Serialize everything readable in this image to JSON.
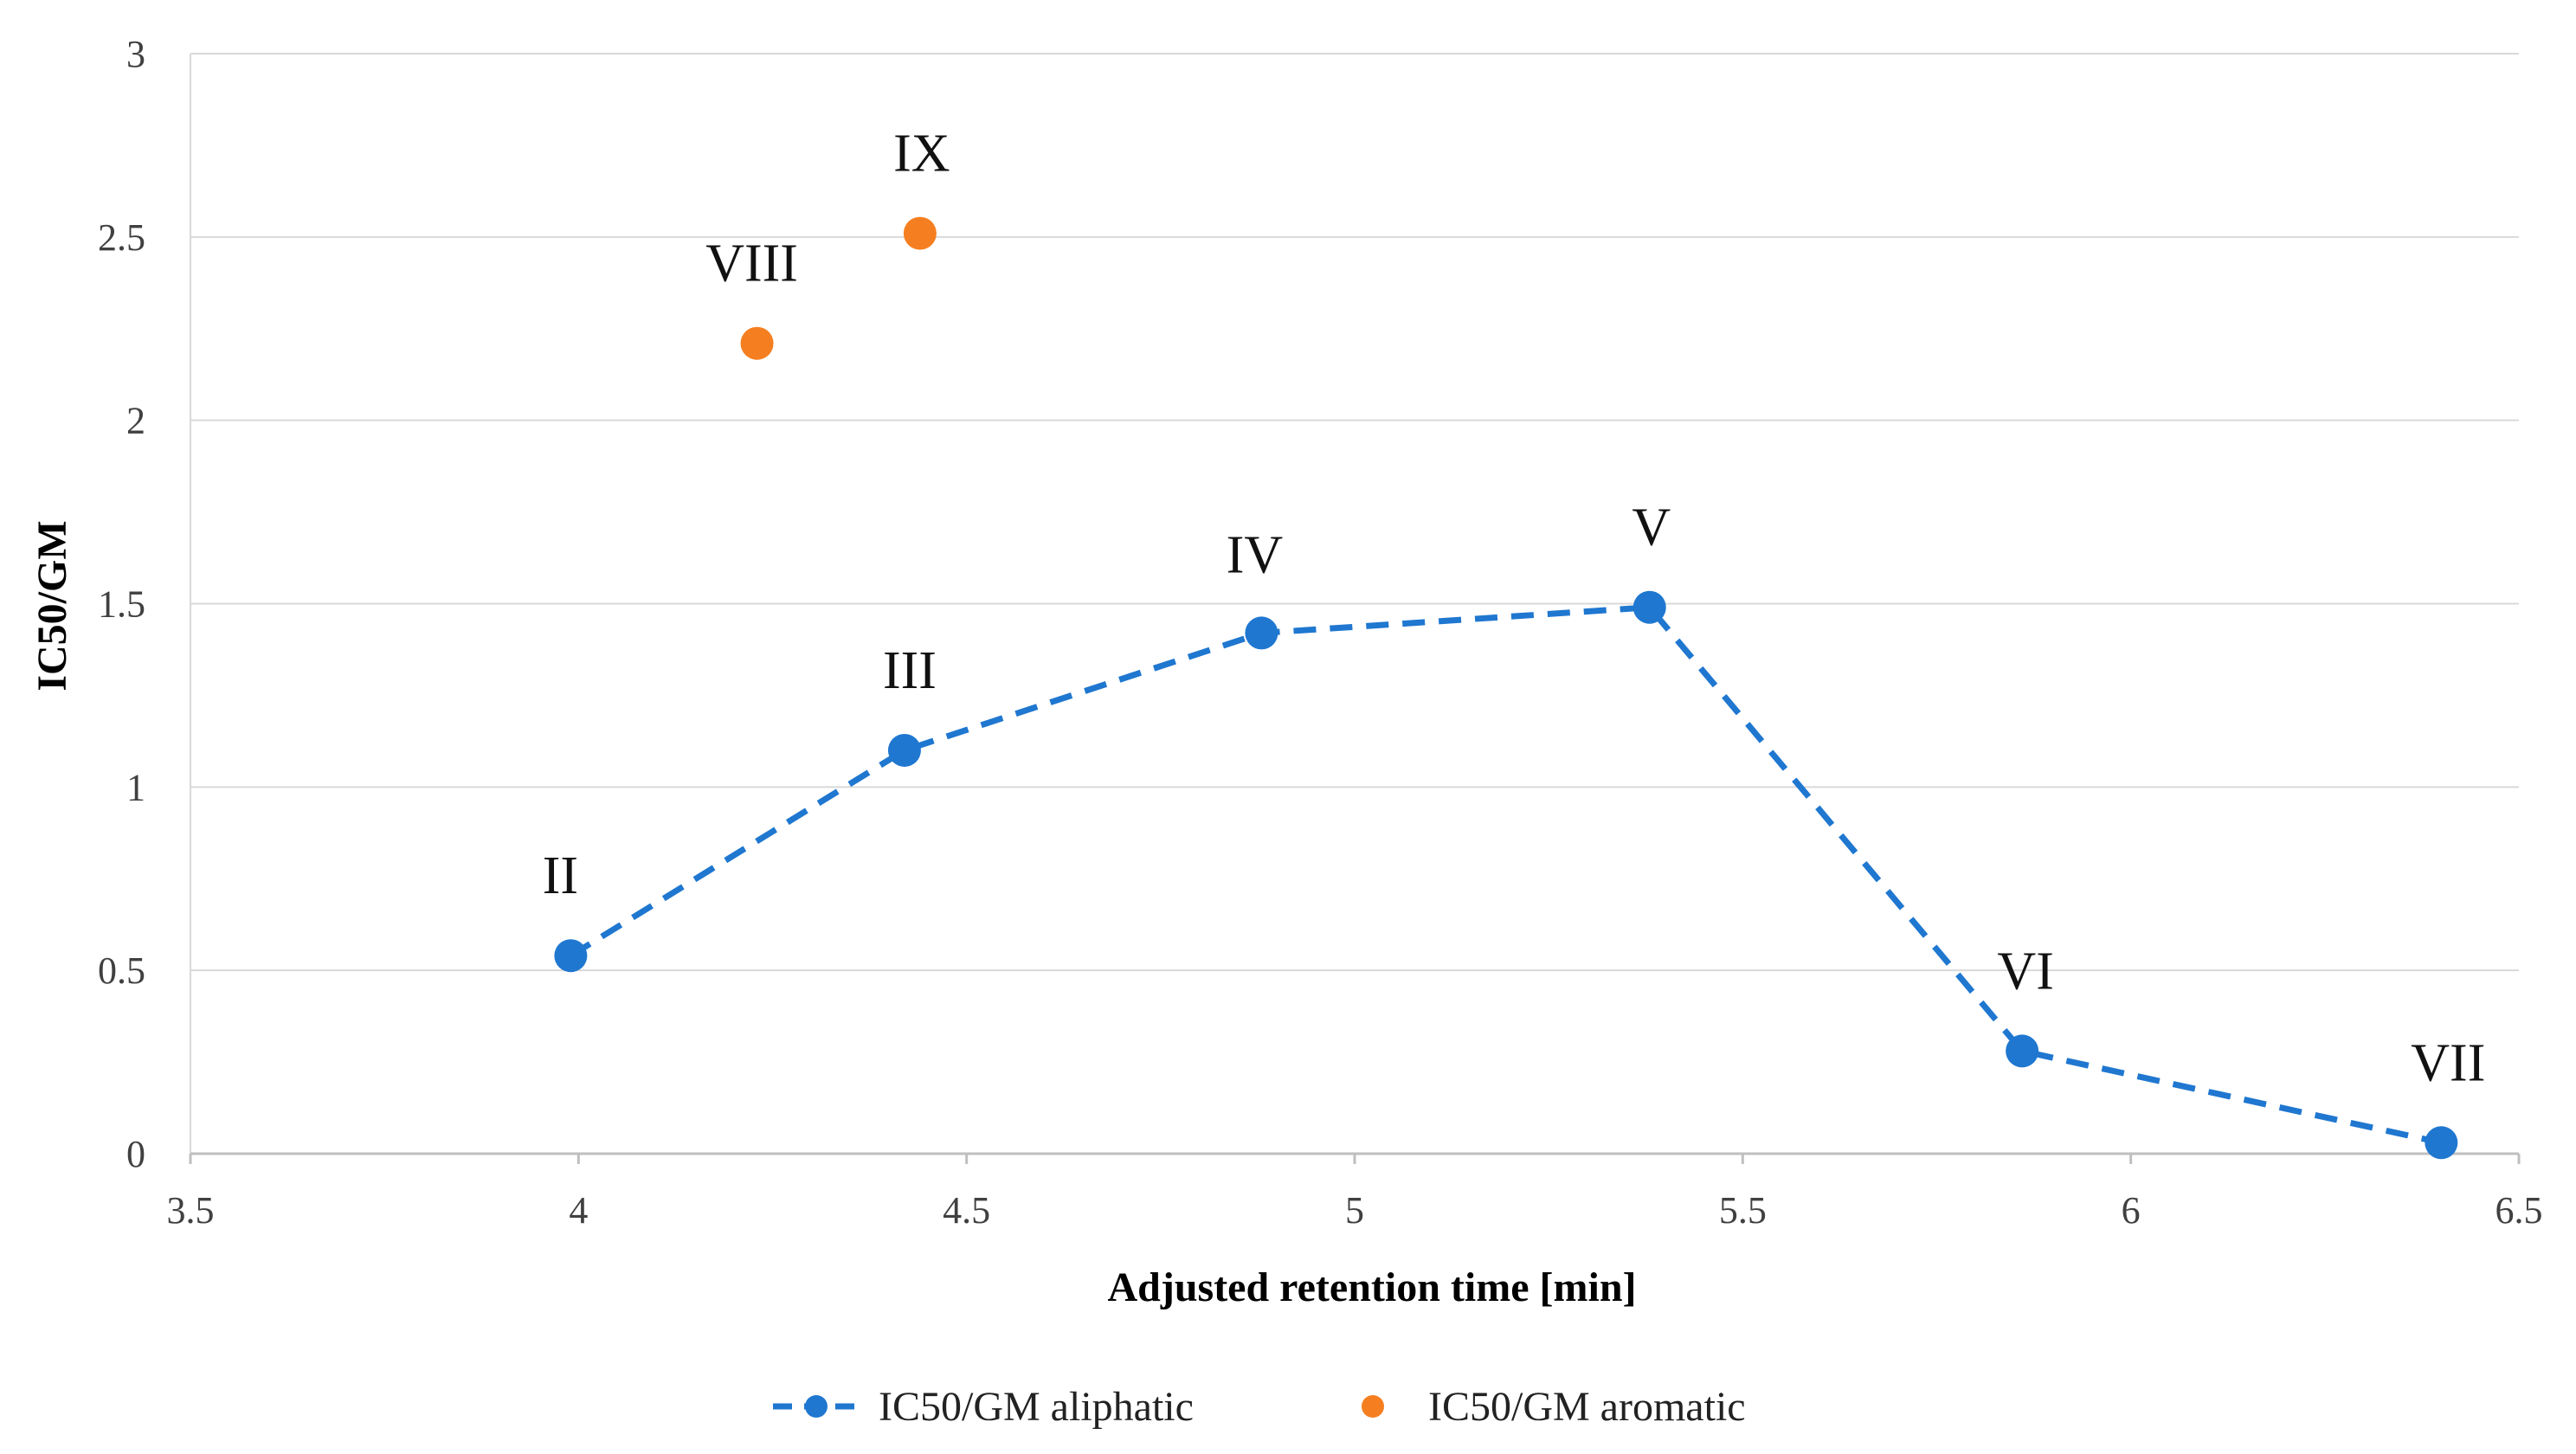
{
  "chart_data": {
    "type": "scatter",
    "title": "",
    "xlabel": "Adjusted retention time [min]",
    "ylabel": "IC50/GM",
    "xlim": [
      3.5,
      6.5
    ],
    "ylim": [
      0,
      3
    ],
    "x_ticks": [
      "3.5",
      "4",
      "4.5",
      "5",
      "5.5",
      "6",
      "6.5"
    ],
    "y_ticks": [
      "0",
      "0.5",
      "1",
      "1.5",
      "2",
      "2.5",
      "3"
    ],
    "grid": "horizontal",
    "legend_position": "bottom",
    "series": [
      {
        "name": "IC50/GM aliphatic",
        "color": "#1F77D0",
        "line": "dashed",
        "points": [
          {
            "x": 3.99,
            "y": 0.54,
            "label": "II"
          },
          {
            "x": 4.42,
            "y": 1.1,
            "label": "III"
          },
          {
            "x": 4.88,
            "y": 1.42,
            "label": "IV"
          },
          {
            "x": 5.38,
            "y": 1.49,
            "label": "V"
          },
          {
            "x": 5.86,
            "y": 0.28,
            "label": "VI"
          },
          {
            "x": 6.4,
            "y": 0.03,
            "label": "VII"
          }
        ]
      },
      {
        "name": "IC50/GM aromatic",
        "color": "#F57F20",
        "line": "none",
        "points": [
          {
            "x": 4.23,
            "y": 2.21,
            "label": "VIII"
          },
          {
            "x": 4.44,
            "y": 2.51,
            "label": "IX"
          }
        ]
      }
    ]
  }
}
